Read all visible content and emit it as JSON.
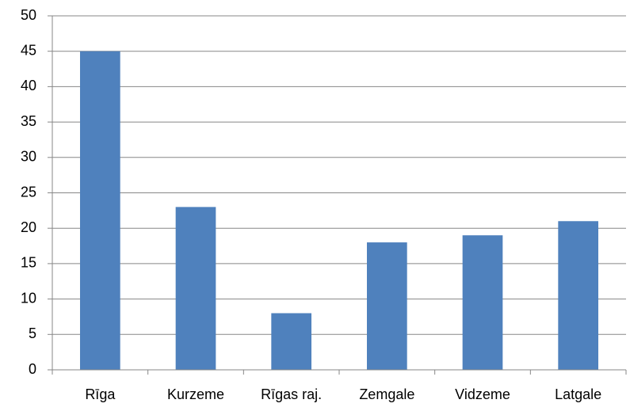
{
  "chart_data": {
    "type": "bar",
    "categories": [
      "Rīga",
      "Kurzeme",
      "Rīgas raj.",
      "Zemgale",
      "Vidzeme",
      "Latgale"
    ],
    "values": [
      45,
      23,
      8,
      18,
      19,
      21
    ],
    "color": "#4f81bd",
    "ylim": [
      0,
      50
    ],
    "yticks": [
      0,
      5,
      10,
      15,
      20,
      25,
      30,
      35,
      40,
      45,
      50
    ],
    "grid": true
  }
}
